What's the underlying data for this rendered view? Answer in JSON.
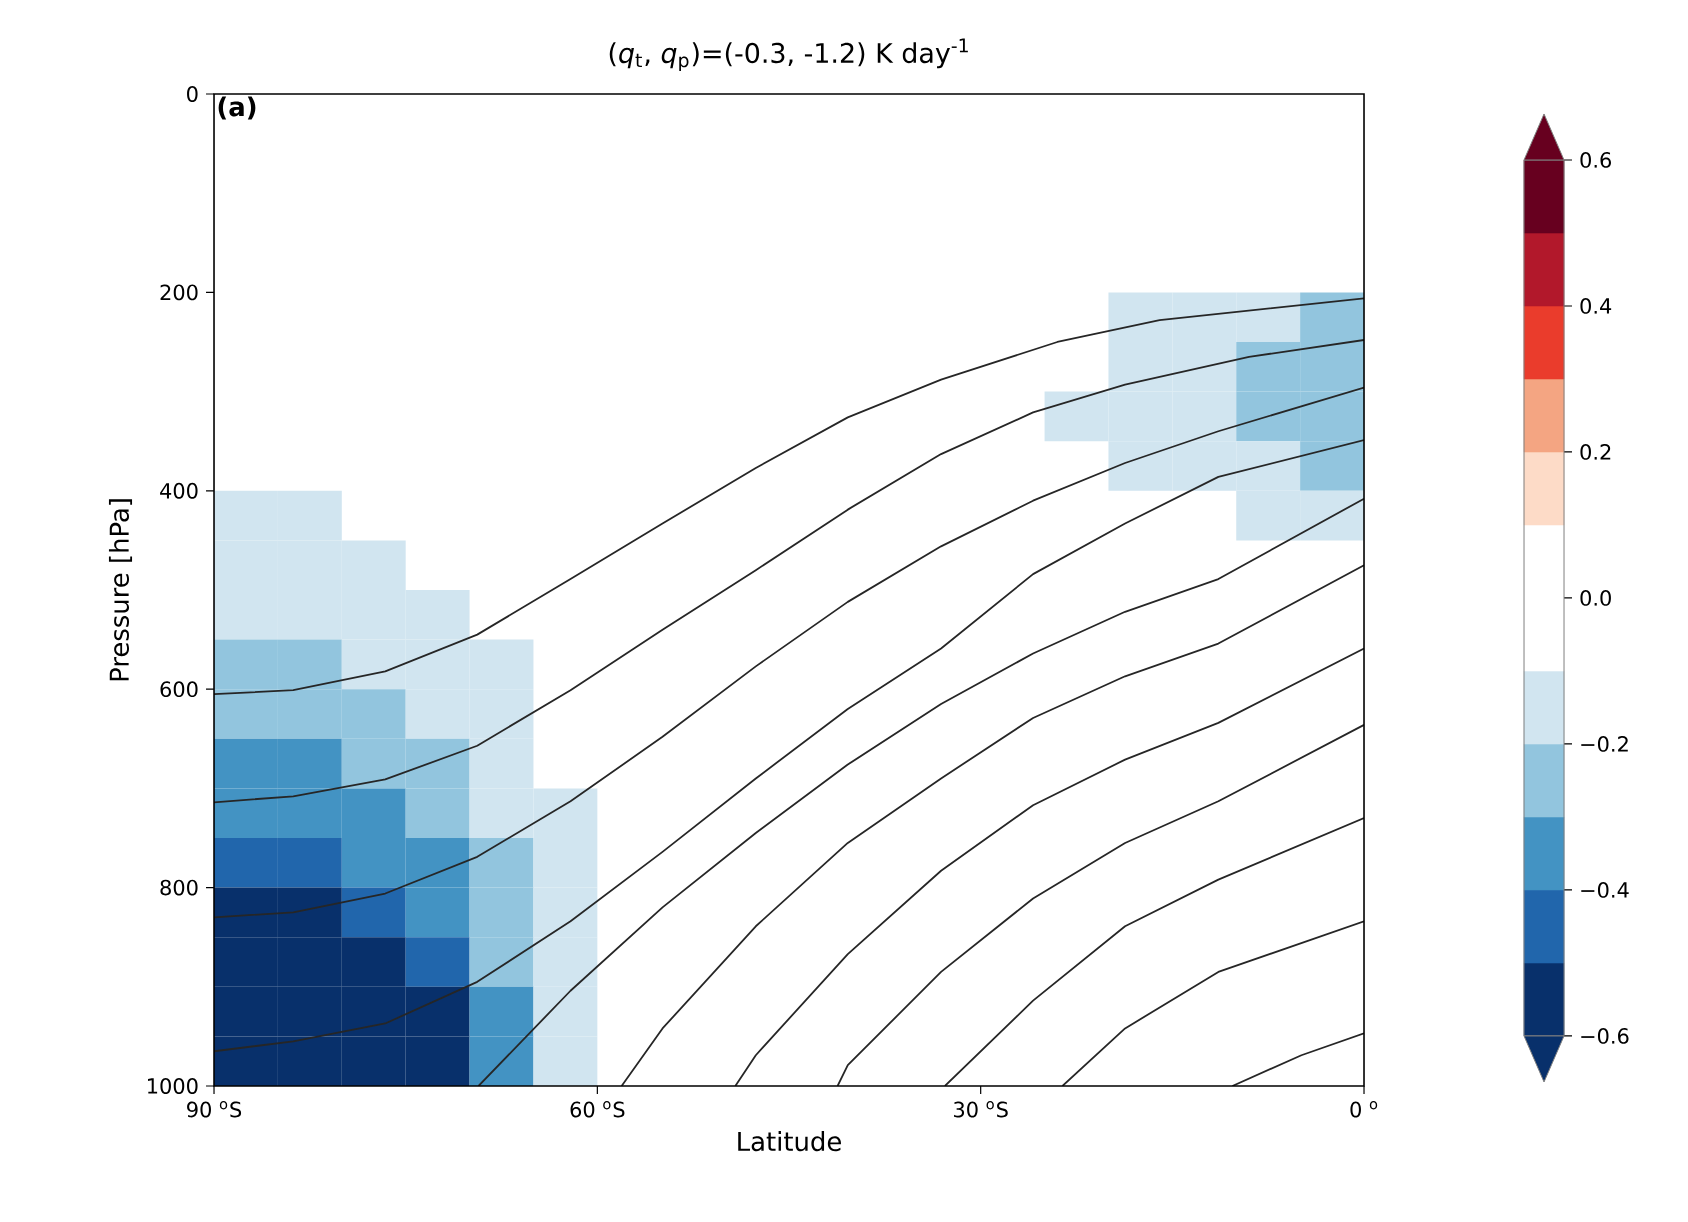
{
  "chart_data": {
    "type": "heatmap",
    "title": "(*q*$_{t}$, *q*$_{p}$)=(-0.3, -1.2) K day$^{-1}$",
    "xlabel": "Latitude",
    "ylabel": "Pressure [hPa]",
    "annotations": [
      "**(a)**"
    ],
    "xlim": [
      -90,
      0
    ],
    "xticks": [
      {
        "value": -90,
        "label": "90 $^{o}$S"
      },
      {
        "value": -60,
        "label": "60 $^{o}$S"
      },
      {
        "value": -30,
        "label": "30 $^{o}$S"
      },
      {
        "value": 0,
        "label": "0 $^{o}$"
      }
    ],
    "ylim": [
      1000,
      0
    ],
    "yticks": [
      0,
      200,
      400,
      600,
      800,
      1000
    ],
    "clim": [
      -0.6,
      0.6
    ],
    "cticks": [
      {
        "value": -0.6,
        "label": "−0.6"
      },
      {
        "value": -0.4,
        "label": "−0.4"
      },
      {
        "value": -0.2,
        "label": "−0.2"
      },
      {
        "value": 0,
        "label": "0.0"
      },
      {
        "value": 0.2,
        "label": "0.2"
      },
      {
        "value": 0.4,
        "label": "0.4"
      },
      {
        "value": 0.6,
        "label": "0.6"
      }
    ],
    "x": [
      -87.5,
      -82.5,
      -77.5,
      -72.5,
      -67.5,
      -62.5,
      -57.5,
      -52.5,
      -47.5,
      -42.5,
      -37.5,
      -32.5,
      -27.5,
      -22.5,
      -17.5,
      -12.5,
      -7.5,
      -2.5
    ],
    "y": [
      225,
      275,
      325,
      375,
      425,
      475,
      525,
      575,
      625,
      675,
      725,
      775,
      825,
      875,
      925,
      975
    ],
    "cells": [
      [
        null,
        null,
        null,
        null,
        null,
        null,
        null,
        null,
        null,
        null,
        null,
        null,
        null,
        null,
        -0.15,
        -0.15,
        -0.15,
        -0.25
      ],
      [
        null,
        null,
        null,
        null,
        null,
        null,
        null,
        null,
        null,
        null,
        null,
        null,
        null,
        null,
        -0.15,
        -0.15,
        -0.25,
        -0.25
      ],
      [
        null,
        null,
        null,
        null,
        null,
        null,
        null,
        null,
        null,
        null,
        null,
        null,
        null,
        -0.15,
        -0.15,
        -0.15,
        -0.25,
        -0.25
      ],
      [
        null,
        null,
        null,
        null,
        null,
        null,
        null,
        null,
        null,
        null,
        null,
        null,
        null,
        null,
        -0.15,
        -0.15,
        -0.15,
        -0.25
      ],
      [
        -0.15,
        -0.15,
        null,
        null,
        null,
        null,
        null,
        null,
        null,
        null,
        null,
        null,
        null,
        null,
        null,
        null,
        -0.15,
        -0.15
      ],
      [
        -0.15,
        -0.15,
        -0.15,
        null,
        null,
        null,
        null,
        null,
        null,
        null,
        null,
        null,
        null,
        null,
        null,
        null,
        null,
        null
      ],
      [
        -0.15,
        -0.15,
        -0.15,
        -0.15,
        null,
        null,
        null,
        null,
        null,
        null,
        null,
        null,
        null,
        null,
        null,
        null,
        null,
        null
      ],
      [
        -0.25,
        -0.25,
        -0.15,
        -0.15,
        -0.15,
        null,
        null,
        null,
        null,
        null,
        null,
        null,
        null,
        null,
        null,
        null,
        null,
        null
      ],
      [
        -0.25,
        -0.25,
        -0.25,
        -0.15,
        -0.15,
        null,
        null,
        null,
        null,
        null,
        null,
        null,
        null,
        null,
        null,
        null,
        null,
        null
      ],
      [
        -0.35,
        -0.35,
        -0.25,
        -0.25,
        -0.15,
        null,
        null,
        null,
        null,
        null,
        null,
        null,
        null,
        null,
        null,
        null,
        null,
        null
      ],
      [
        -0.35,
        -0.35,
        -0.35,
        -0.25,
        -0.15,
        -0.15,
        null,
        null,
        null,
        null,
        null,
        null,
        null,
        null,
        null,
        null,
        null,
        null
      ],
      [
        -0.45,
        -0.45,
        -0.35,
        -0.35,
        -0.25,
        -0.15,
        null,
        null,
        null,
        null,
        null,
        null,
        null,
        null,
        null,
        null,
        null,
        null
      ],
      [
        -0.55,
        -0.55,
        -0.45,
        -0.35,
        -0.25,
        -0.15,
        null,
        null,
        null,
        null,
        null,
        null,
        null,
        null,
        null,
        null,
        null,
        null
      ],
      [
        -0.55,
        -0.55,
        -0.55,
        -0.45,
        -0.25,
        -0.15,
        null,
        null,
        null,
        null,
        null,
        null,
        null,
        null,
        null,
        null,
        null,
        null
      ],
      [
        -0.55,
        -0.55,
        -0.55,
        -0.55,
        -0.35,
        -0.15,
        null,
        null,
        null,
        null,
        null,
        null,
        null,
        null,
        null,
        null,
        null,
        null
      ],
      [
        -0.55,
        -0.55,
        -0.55,
        -0.55,
        -0.35,
        -0.15,
        null,
        null,
        null,
        null,
        null,
        null,
        null,
        null,
        null,
        null,
        null,
        null
      ]
    ],
    "series": [
      {
        "type": "line",
        "color": "#262626",
        "x": [
          -90,
          -83.8,
          -76.6,
          -69.4,
          -62.1,
          -54.9,
          -47.6,
          -40.4,
          -33.1,
          -24,
          -16,
          0
        ],
        "values": [
          605,
          601,
          582,
          545,
          489,
          433,
          377,
          326,
          288,
          250,
          228,
          206
        ]
      },
      {
        "type": "line",
        "color": "#262626",
        "x": [
          -90,
          -83.8,
          -76.6,
          -69.4,
          -62.1,
          -54.9,
          -47.6,
          -40.4,
          -33.1,
          -25.9,
          -18.7,
          -9,
          0
        ],
        "values": [
          714,
          708,
          691,
          657,
          601,
          540,
          480,
          419,
          363,
          321,
          293,
          265,
          248
        ]
      },
      {
        "type": "line",
        "color": "#262626",
        "x": [
          -90,
          -83.8,
          -76.6,
          -69.4,
          -62.1,
          -54.9,
          -47.6,
          -40.4,
          -33.1,
          -25.9,
          -18.7,
          -11.4,
          0
        ],
        "values": [
          830,
          825,
          806,
          769,
          713,
          648,
          577,
          512,
          456,
          410,
          372,
          340,
          296
        ]
      },
      {
        "type": "line",
        "color": "#262626",
        "x": [
          -90,
          -83.8,
          -76.6,
          -69.4,
          -62.1,
          -54.9,
          -47.6,
          -40.4,
          -33.1,
          -25.9,
          -18.7,
          -11.4,
          0
        ],
        "values": [
          965,
          955,
          937,
          895,
          834,
          764,
          690,
          620,
          559,
          484,
          433,
          386,
          349
        ]
      },
      {
        "type": "line",
        "color": "#262626",
        "x": [
          -69.3,
          -62.1,
          -54.9,
          -47.6,
          -40.4,
          -33.1,
          -25.9,
          -18.7,
          -11.4,
          0
        ],
        "values": [
          1000,
          904,
          820,
          745,
          676,
          615,
          564,
          522,
          489,
          408
        ]
      },
      {
        "type": "line",
        "color": "#262626",
        "x": [
          -58.1,
          -54.9,
          -47.6,
          -40.4,
          -33.1,
          -25.9,
          -18.7,
          -11.4,
          0
        ],
        "values": [
          1000,
          942,
          839,
          755,
          690,
          629,
          587,
          554,
          475
        ]
      },
      {
        "type": "line",
        "color": "#262626",
        "x": [
          -49.2,
          -47.6,
          -40.4,
          -33.1,
          -25.9,
          -18.7,
          -11.4,
          0
        ],
        "values": [
          1000,
          969,
          867,
          783,
          717,
          671,
          634,
          559
        ]
      },
      {
        "type": "line",
        "color": "#262626",
        "x": [
          -41.2,
          -40.4,
          -33.1,
          -25.9,
          -18.7,
          -11.4,
          0
        ],
        "values": [
          1000,
          979,
          885,
          811,
          755,
          713,
          636
        ]
      },
      {
        "type": "line",
        "color": "#262626",
        "x": [
          -32.8,
          -25.9,
          -18.7,
          -11.4,
          0
        ],
        "values": [
          1000,
          914,
          839,
          792,
          730
        ]
      },
      {
        "type": "line",
        "color": "#262626",
        "x": [
          -23.6,
          -18.7,
          -11.4,
          0
        ],
        "values": [
          1000,
          942,
          885,
          834
        ]
      },
      {
        "type": "line",
        "color": "#262626",
        "x": [
          -10.3,
          -4.9,
          0
        ],
        "values": [
          1000,
          969,
          947
        ]
      }
    ]
  }
}
